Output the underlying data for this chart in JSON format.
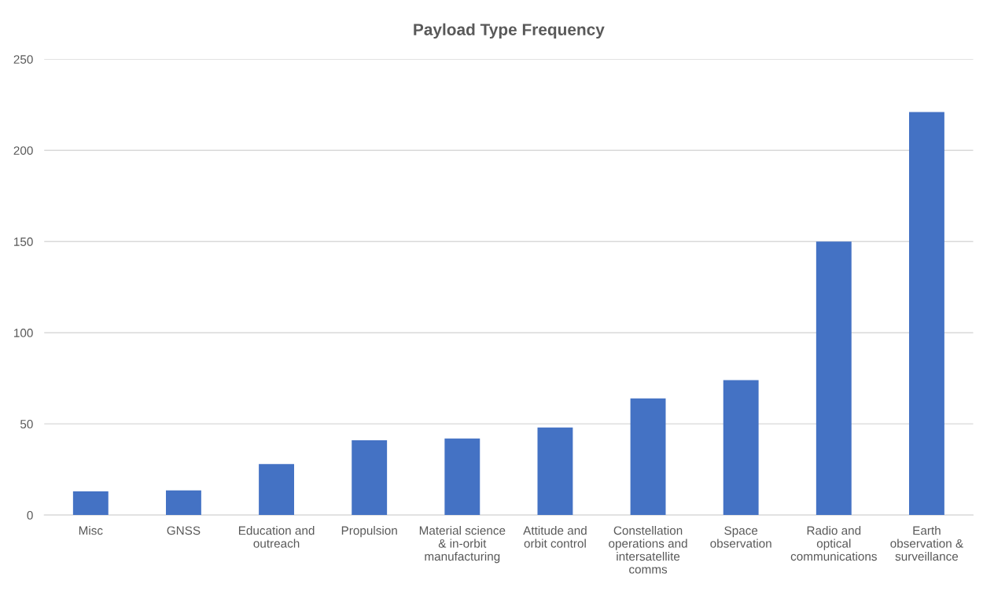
{
  "chart_data": {
    "type": "bar",
    "title": "Payload Type Frequency",
    "categories": [
      "Misc",
      "GNSS",
      "Education and outreach",
      "Propulsion",
      "Material science & in-orbit manufacturing",
      "Attitude and orbit control",
      "Constellation operations and intersatellite comms",
      "Space observation",
      "Radio and optical communications",
      "Earth observation & surveillance"
    ],
    "values": [
      13,
      13.5,
      28,
      41,
      42,
      48,
      64,
      74,
      150,
      221
    ],
    "color": "#4472c4",
    "ylim": [
      0,
      250
    ],
    "yticks": [
      0,
      50,
      100,
      150,
      200,
      250
    ],
    "grid": "y",
    "legend": false
  }
}
